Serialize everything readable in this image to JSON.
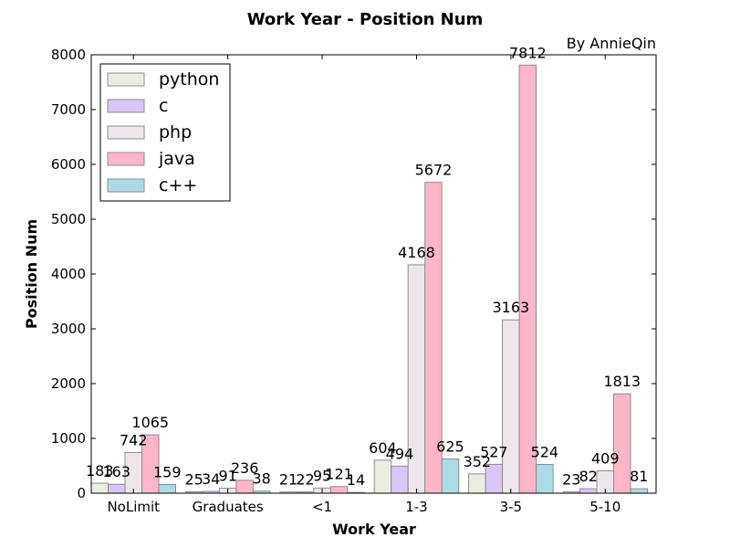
{
  "chart_data": {
    "type": "bar",
    "title": "Work Year - Position Num",
    "credit": "By AnnieQin",
    "xlabel": "Work Year",
    "ylabel": "Position Num",
    "ylim": [
      0,
      8000
    ],
    "yticks": [
      0,
      1000,
      2000,
      3000,
      4000,
      5000,
      6000,
      7000,
      8000
    ],
    "grid": false,
    "legend_position": "top-left",
    "categories": [
      "NoLimit",
      "Graduates",
      "<1",
      "1-3",
      "3-5",
      "5-10"
    ],
    "series": [
      {
        "name": "python",
        "color": "#e8efe0",
        "values": [
          183,
          25,
          21,
          604,
          352,
          23
        ]
      },
      {
        "name": "c",
        "color": "#d9c6f6",
        "values": [
          163,
          34,
          22,
          494,
          527,
          82
        ]
      },
      {
        "name": "php",
        "color": "#efe6ec",
        "values": [
          742,
          91,
          95,
          4168,
          3163,
          409
        ]
      },
      {
        "name": "java",
        "color": "#ffb6c8",
        "values": [
          1065,
          236,
          121,
          5672,
          7812,
          1813
        ]
      },
      {
        "name": "c++",
        "color": "#acdbe8",
        "values": [
          159,
          38,
          14,
          625,
          524,
          81
        ]
      }
    ]
  }
}
